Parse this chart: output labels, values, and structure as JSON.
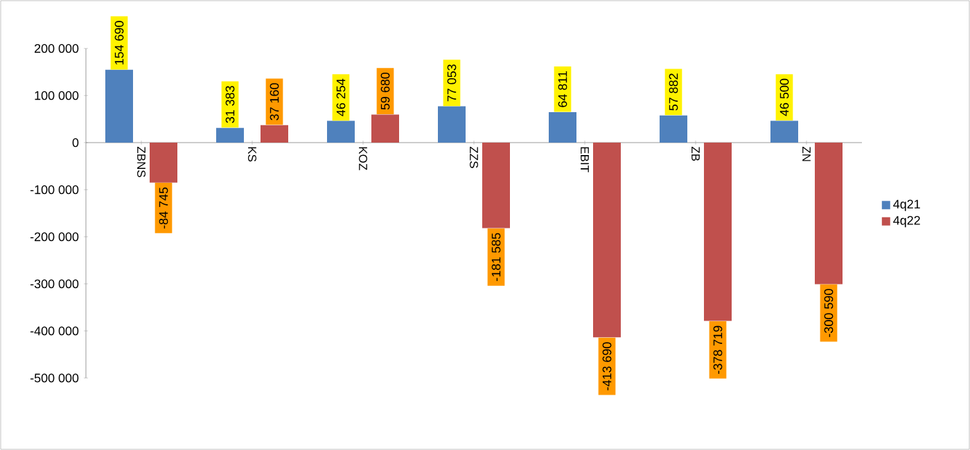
{
  "chart_data": {
    "type": "bar",
    "categories": [
      "ZBNS",
      "KS",
      "KOZ",
      "ZZS",
      "EBIT",
      "ZB",
      "ZN"
    ],
    "series": [
      {
        "name": "4q21",
        "color": "#4f81bd",
        "values": [
          154690,
          31383,
          46254,
          77053,
          64811,
          57882,
          46500
        ],
        "value_labels": [
          "154 690",
          "31 383",
          "46 254",
          "77 053",
          "64 811",
          "57 882",
          "46 500"
        ]
      },
      {
        "name": "4q22",
        "color": "#c0504d",
        "values": [
          -84745,
          37160,
          59680,
          -181585,
          -413690,
          -378719,
          -300590
        ],
        "value_labels": [
          "-84 745",
          "37 160",
          "59 680",
          "-181 585",
          "-413 690",
          "-378 719",
          "-300 590"
        ]
      }
    ],
    "ylim": [
      -500000,
      200000
    ],
    "yticks": [
      {
        "value": -500000,
        "label": "-500 000"
      },
      {
        "value": -400000,
        "label": "-400 000"
      },
      {
        "value": -300000,
        "label": "-300 000"
      },
      {
        "value": -200000,
        "label": "-200 000"
      },
      {
        "value": -100000,
        "label": "-100 000"
      },
      {
        "value": 0,
        "label": "0"
      },
      {
        "value": 100000,
        "label": "100 000"
      },
      {
        "value": 200000,
        "label": "200 000"
      }
    ],
    "legend": "right",
    "grid": false
  }
}
